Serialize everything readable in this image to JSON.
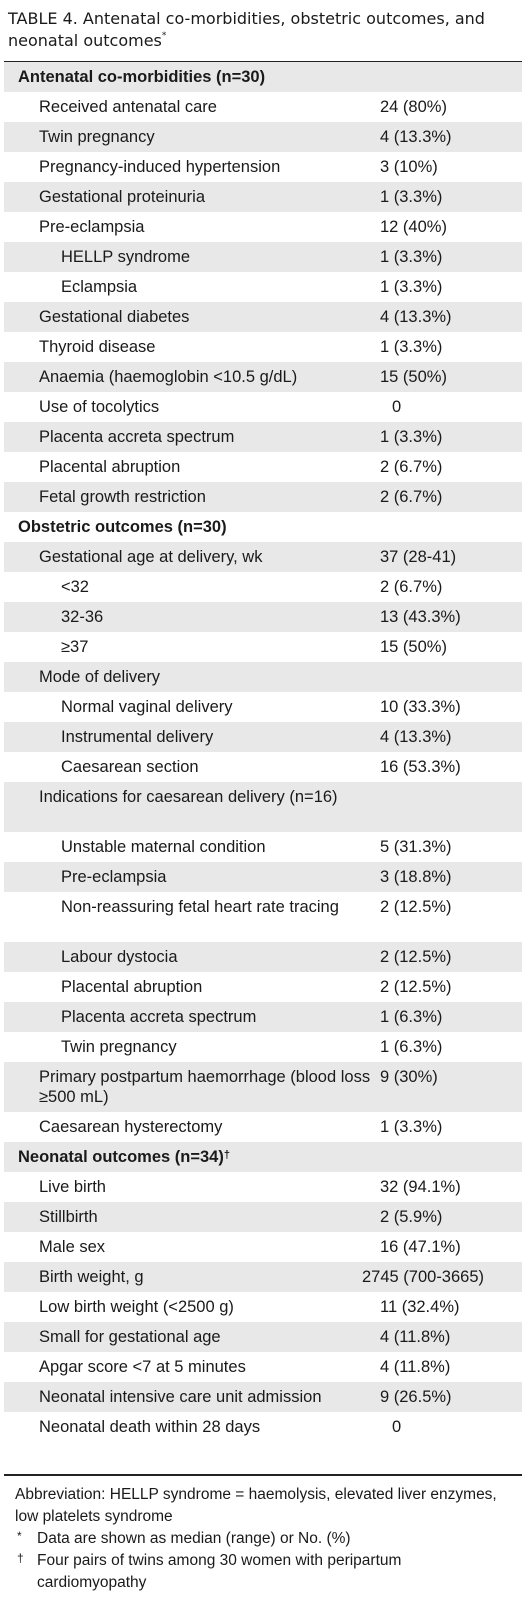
{
  "caption": {
    "label": "TABLE 4.",
    "text": " Antenatal co-morbidities, obstetric outcomes, and neonatal outcomes",
    "mark": "*"
  },
  "sections": [
    {
      "title": "Antenatal co-morbidities (n=30)",
      "rows": [
        {
          "label": "Received antenatal care",
          "value": "24 (80%)",
          "level": 1
        },
        {
          "label": "Twin pregnancy",
          "value": "4 (13.3%)",
          "level": 1
        },
        {
          "label": "Pregnancy-induced hypertension",
          "value": "3 (10%)",
          "level": 1
        },
        {
          "label": "Gestational proteinuria",
          "value": "1 (3.3%)",
          "level": 1
        },
        {
          "label": "Pre-eclampsia",
          "value": "12 (40%)",
          "level": 1
        },
        {
          "label": "HELLP syndrome",
          "value": "1 (3.3%)",
          "level": 2
        },
        {
          "label": "Eclampsia",
          "value": "1 (3.3%)",
          "level": 2
        },
        {
          "label": "Gestational diabetes",
          "value": "4 (13.3%)",
          "level": 1
        },
        {
          "label": "Thyroid disease",
          "value": "1 (3.3%)",
          "level": 1
        },
        {
          "label": "Anaemia (haemoglobin <10.5 g/dL)",
          "value": "15 (50%)",
          "level": 1
        },
        {
          "label": "Use of tocolytics",
          "value": "0",
          "level": 1
        },
        {
          "label": "Placenta accreta spectrum",
          "value": "1 (3.3%)",
          "level": 1
        },
        {
          "label": "Placental abruption",
          "value": "2 (6.7%)",
          "level": 1
        },
        {
          "label": "Fetal growth restriction",
          "value": "2 (6.7%)",
          "level": 1
        }
      ]
    },
    {
      "title": "Obstetric outcomes (n=30)",
      "rows": [
        {
          "label": "Gestational age at delivery, wk",
          "value": "37 (28-41)",
          "level": 1
        },
        {
          "label": "<32",
          "value": "2 (6.7%)",
          "level": 2
        },
        {
          "label": "32-36",
          "value": "13 (43.3%)",
          "level": 2
        },
        {
          "label": "≥37",
          "value": "15 (50%)",
          "level": 2
        },
        {
          "label": "Mode of delivery",
          "value": "",
          "level": 1
        },
        {
          "label": "Normal vaginal delivery",
          "value": "10 (33.3%)",
          "level": 2
        },
        {
          "label": "Instrumental delivery",
          "value": "4 (13.3%)",
          "level": 2
        },
        {
          "label": "Caesarean section",
          "value": "16 (53.3%)",
          "level": 2
        },
        {
          "label": "Indications for caesarean delivery (n=16)",
          "value": "",
          "level": 1
        },
        {
          "label": "Unstable maternal condition",
          "value": "5 (31.3%)",
          "level": 2
        },
        {
          "label": "Pre-eclampsia",
          "value": "3 (18.8%)",
          "level": 2
        },
        {
          "label": "Non-reassuring fetal heart rate tracing",
          "value": "2 (12.5%)",
          "level": 2
        },
        {
          "label": "Labour dystocia",
          "value": "2 (12.5%)",
          "level": 2
        },
        {
          "label": "Placental abruption",
          "value": "2 (12.5%)",
          "level": 2
        },
        {
          "label": "Placenta accreta spectrum",
          "value": "1 (6.3%)",
          "level": 2
        },
        {
          "label": "Twin pregnancy",
          "value": "1 (6.3%)",
          "level": 2
        },
        {
          "label": "Primary postpartum haemorrhage (blood loss ≥500 mL)",
          "value": "9 (30%)",
          "level": 1
        },
        {
          "label": "Caesarean hysterectomy",
          "value": "1 (3.3%)",
          "level": 1
        }
      ]
    },
    {
      "title": "Neonatal outcomes (n=34)",
      "title_mark": "†",
      "rows": [
        {
          "label": "Live birth",
          "value": "32 (94.1%)",
          "level": 1
        },
        {
          "label": "Stillbirth",
          "value": "2 (5.9%)",
          "level": 1
        },
        {
          "label": "Male sex",
          "value": "16 (47.1%)",
          "level": 1
        },
        {
          "label": "Birth weight, g",
          "value": "2745 (700-3665)",
          "level": 1
        },
        {
          "label": "Low birth weight (<2500 g)",
          "value": "11 (32.4%)",
          "level": 1
        },
        {
          "label": "Small for gestational age",
          "value": "4 (11.8%)",
          "level": 1
        },
        {
          "label": "Apgar score <7 at 5 minutes",
          "value": "4 (11.8%)",
          "level": 1
        },
        {
          "label": "Neonatal intensive care unit admission",
          "value": "9 (26.5%)",
          "level": 1
        },
        {
          "label": "Neonatal death within 28 days",
          "value": "0",
          "level": 1
        }
      ]
    }
  ],
  "footnotes": {
    "abbreviation": "Abbreviation: HELLP syndrome = haemolysis, elevated liver enzymes, low platelets syndrome",
    "notes": [
      {
        "mark": "*",
        "text": "Data are shown as median (range) or No. (%)"
      },
      {
        "mark": "†",
        "text": "Four pairs of twins among 30 women with peripartum cardiomyopathy"
      }
    ]
  }
}
